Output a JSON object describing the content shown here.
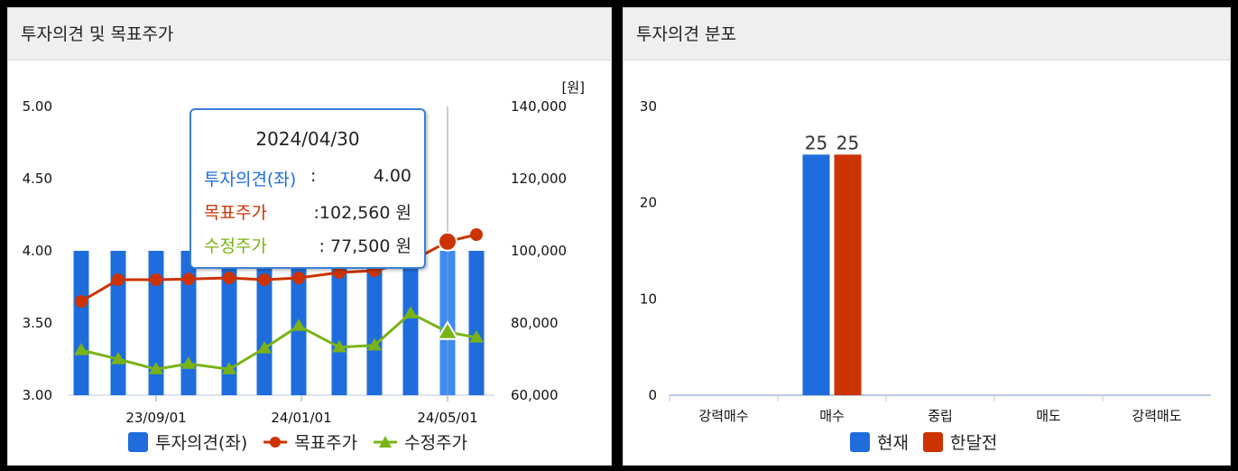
{
  "left_panel": {
    "title": "투자의견 및 목표주가"
  },
  "right_panel": {
    "title": "투자의견 분포"
  },
  "tooltip": {
    "date": "2024/04/30",
    "opinion_label": "투자의견(좌)",
    "opinion_value": "4.00",
    "target_label": "목표주가",
    "target_value": ":102,560 원",
    "adj_label": "수정주가",
    "adj_value": ":  77,500 원"
  },
  "colors": {
    "opinion": "#1f6ddd",
    "target": "#cc3300",
    "adjusted": "#7ab317",
    "prev_month": "#cc3300"
  },
  "chart_data": [
    {
      "type": "bar",
      "title": "",
      "y_unit": "[원]",
      "x_ticks": [
        "23/09/01",
        "24/01/01",
        "24/05/01"
      ],
      "y_left_ticks": [
        "5.00",
        "4.50",
        "4.00",
        "3.50",
        "3.00"
      ],
      "y_left_range": [
        3.0,
        5.0
      ],
      "y_right_ticks": [
        "140,000",
        "120,000",
        "100,000",
        "80,000",
        "60,000"
      ],
      "y_right_range": [
        60000,
        140000
      ],
      "series": [
        {
          "name": "투자의견(좌)",
          "type": "bar",
          "axis": "left",
          "values": [
            4,
            4,
            4,
            4,
            4,
            4,
            4,
            4,
            4,
            4,
            4,
            4
          ]
        },
        {
          "name": "목표주가",
          "type": "line",
          "axis": "right",
          "values": [
            86000,
            92000,
            92000,
            92200,
            92500,
            92000,
            92500,
            94000,
            94500,
            97000,
            102560,
            104500
          ]
        },
        {
          "name": "수정주가",
          "type": "line",
          "axis": "right",
          "values": [
            72500,
            70000,
            67200,
            68700,
            67200,
            73000,
            79200,
            73300,
            73800,
            82700,
            77500,
            76000
          ]
        }
      ],
      "highlight_index": 10,
      "legend": [
        "투자의견(좌)",
        "목표주가",
        "수정주가"
      ]
    },
    {
      "type": "bar",
      "title": "",
      "categories": [
        "강력매수",
        "매수",
        "중립",
        "매도",
        "강력매도"
      ],
      "y_ticks": [
        "30",
        "20",
        "10",
        "0"
      ],
      "ylim": [
        0,
        30
      ],
      "series": [
        {
          "name": "현재",
          "values": [
            0,
            25,
            0,
            0,
            0
          ]
        },
        {
          "name": "한달전",
          "values": [
            0,
            25,
            0,
            0,
            0
          ]
        }
      ],
      "data_labels": [
        "25",
        "25"
      ],
      "legend": [
        "현재",
        "한달전"
      ]
    }
  ]
}
